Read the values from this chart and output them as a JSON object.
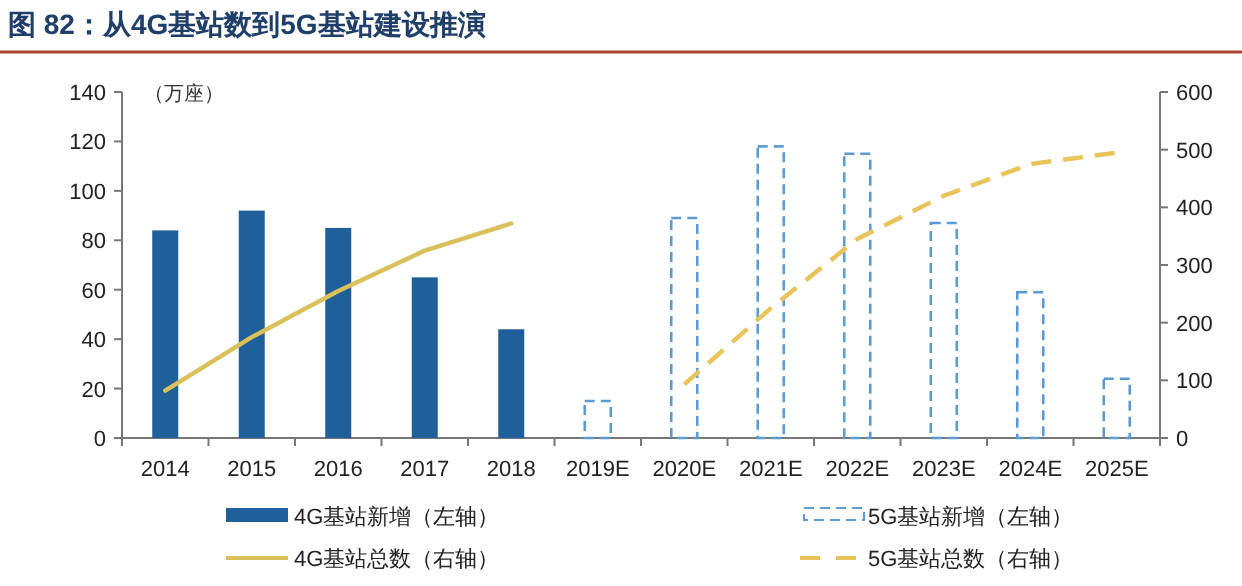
{
  "chart_data": {
    "type": "bar",
    "title": "图 82：从4G基站数到5G基站建设推演",
    "ylabel": "（万座）",
    "categories": [
      "2014",
      "2015",
      "2016",
      "2017",
      "2018",
      "2019E",
      "2020E",
      "2021E",
      "2022E",
      "2023E",
      "2024E",
      "2025E"
    ],
    "series": [
      {
        "name": "4G基站新增（左轴）",
        "color": "#1f5f9a",
        "values": [
          84,
          92,
          85,
          65,
          44,
          null,
          null,
          null,
          null,
          null,
          null,
          null
        ]
      },
      {
        "name": "5G基站新增（左轴）",
        "color": "#5b9bd5",
        "line_style": "dashed",
        "values": [
          null,
          null,
          null,
          null,
          null,
          15,
          89,
          118,
          115,
          87,
          59,
          24
        ]
      },
      {
        "name": "4G基站总数（右轴）",
        "type": "line",
        "axis": "y2",
        "color": "#d9c05a",
        "values": [
          82,
          175,
          255,
          325,
          372,
          null,
          null,
          null,
          null,
          null,
          null,
          null
        ]
      },
      {
        "name": "5G基站总数（右轴）",
        "type": "line",
        "axis": "y2",
        "color": "#e8c35a",
        "line_style": "dashed",
        "values": [
          null,
          null,
          null,
          null,
          null,
          null,
          93,
          225,
          345,
          420,
          475,
          495
        ]
      }
    ],
    "ylim": [
      0,
      140
    ],
    "yticks": [
      0,
      20,
      40,
      60,
      80,
      100,
      120,
      140
    ],
    "y2lim": [
      0,
      600
    ],
    "y2ticks": [
      0,
      100,
      200,
      300,
      400,
      500,
      600
    ],
    "legend": "bottom"
  }
}
